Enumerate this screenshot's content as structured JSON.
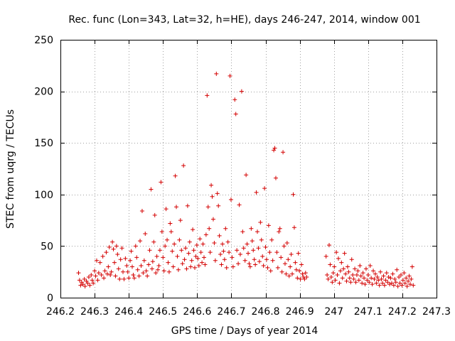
{
  "colors": {
    "series": "#d40000",
    "axis": "#000000",
    "grid": "#a0a0a0",
    "background": "#ffffff"
  },
  "chart_data": {
    "type": "scatter",
    "marker": "plus",
    "title": "Rec. func (Lon=343, Lat=32, h=HE), days 246-247, 2014, window 001",
    "xlabel": "GPS time / Days of year 2014",
    "ylabel": "STEC from uqrg / TECUs",
    "xlim": [
      246.2,
      247.3
    ],
    "ylim": [
      0,
      250
    ],
    "xticks": [
      246.2,
      246.3,
      246.4,
      246.5,
      246.6,
      246.7,
      246.8,
      246.9,
      247.0,
      247.1,
      247.2,
      247.3
    ],
    "xtick_labels": [
      "246.2",
      "246.3",
      "246.4",
      "246.5",
      "246.6",
      "246.7",
      "246.8",
      "246.9",
      "247",
      "247.1",
      "247.2",
      "247.3"
    ],
    "yticks": [
      0,
      50,
      100,
      150,
      200,
      250
    ],
    "ytick_labels": [
      "0",
      "50",
      "100",
      "150",
      "200",
      "250"
    ],
    "grid": true,
    "points": [
      [
        246.253,
        24
      ],
      [
        246.256,
        17
      ],
      [
        246.259,
        12
      ],
      [
        246.262,
        15
      ],
      [
        246.266,
        13
      ],
      [
        246.27,
        18
      ],
      [
        246.272,
        11
      ],
      [
        246.276,
        16
      ],
      [
        246.28,
        14
      ],
      [
        246.283,
        20
      ],
      [
        246.286,
        12
      ],
      [
        246.29,
        22
      ],
      [
        246.293,
        17
      ],
      [
        246.296,
        14
      ],
      [
        246.3,
        26
      ],
      [
        246.303,
        21
      ],
      [
        246.306,
        36
      ],
      [
        246.309,
        17
      ],
      [
        246.312,
        24
      ],
      [
        246.316,
        34
      ],
      [
        246.32,
        22
      ],
      [
        246.324,
        40
      ],
      [
        246.327,
        19
      ],
      [
        246.33,
        26
      ],
      [
        246.334,
        44
      ],
      [
        246.337,
        23
      ],
      [
        246.34,
        30
      ],
      [
        246.343,
        49
      ],
      [
        246.346,
        22
      ],
      [
        246.349,
        25
      ],
      [
        246.352,
        54
      ],
      [
        246.355,
        47
      ],
      [
        246.358,
        34
      ],
      [
        246.361,
        21
      ],
      [
        246.364,
        50
      ],
      [
        246.367,
        42
      ],
      [
        246.37,
        28
      ],
      [
        246.373,
        18
      ],
      [
        246.376,
        37
      ],
      [
        246.38,
        48
      ],
      [
        246.383,
        25
      ],
      [
        246.386,
        18
      ],
      [
        246.39,
        38
      ],
      [
        246.394,
        31
      ],
      [
        246.397,
        25
      ],
      [
        246.4,
        19
      ],
      [
        246.404,
        36
      ],
      [
        246.407,
        45
      ],
      [
        246.41,
        30
      ],
      [
        246.413,
        22
      ],
      [
        246.416,
        19
      ],
      [
        246.42,
        50
      ],
      [
        246.423,
        39
      ],
      [
        246.426,
        27
      ],
      [
        246.43,
        21
      ],
      [
        246.433,
        55
      ],
      [
        246.436,
        31
      ],
      [
        246.439,
        84
      ],
      [
        246.442,
        24
      ],
      [
        246.445,
        36
      ],
      [
        246.448,
        62
      ],
      [
        246.451,
        26
      ],
      [
        246.454,
        21
      ],
      [
        246.458,
        32
      ],
      [
        246.461,
        46
      ],
      [
        246.465,
        105
      ],
      [
        246.468,
        28
      ],
      [
        246.47,
        35
      ],
      [
        246.473,
        54
      ],
      [
        246.476,
        80
      ],
      [
        246.479,
        24
      ],
      [
        246.482,
        40
      ],
      [
        246.485,
        27
      ],
      [
        246.488,
        31
      ],
      [
        246.491,
        46
      ],
      [
        246.494,
        112
      ],
      [
        246.497,
        64
      ],
      [
        246.5,
        39
      ],
      [
        246.503,
        26
      ],
      [
        246.506,
        50
      ],
      [
        246.509,
        86
      ],
      [
        246.512,
        56
      ],
      [
        246.515,
        34
      ],
      [
        246.518,
        25
      ],
      [
        246.521,
        72
      ],
      [
        246.524,
        64
      ],
      [
        246.527,
        45
      ],
      [
        246.53,
        30
      ],
      [
        246.533,
        52
      ],
      [
        246.536,
        118
      ],
      [
        246.539,
        88
      ],
      [
        246.542,
        40
      ],
      [
        246.545,
        27
      ],
      [
        246.548,
        56
      ],
      [
        246.551,
        75
      ],
      [
        246.554,
        46
      ],
      [
        246.557,
        33
      ],
      [
        246.56,
        128
      ],
      [
        246.563,
        37
      ],
      [
        246.566,
        48
      ],
      [
        246.569,
        28
      ],
      [
        246.572,
        89
      ],
      [
        246.575,
        43
      ],
      [
        246.578,
        54
      ],
      [
        246.581,
        30
      ],
      [
        246.584,
        36
      ],
      [
        246.587,
        66
      ],
      [
        246.59,
        46
      ],
      [
        246.593,
        29
      ],
      [
        246.596,
        40
      ],
      [
        246.599,
        51
      ],
      [
        246.602,
        38
      ],
      [
        246.605,
        31
      ],
      [
        246.608,
        57
      ],
      [
        246.611,
        44
      ],
      [
        246.614,
        34
      ],
      [
        246.617,
        52
      ],
      [
        246.62,
        39
      ],
      [
        246.623,
        32
      ],
      [
        246.626,
        61
      ],
      [
        246.629,
        196
      ],
      [
        246.632,
        88
      ],
      [
        246.635,
        67
      ],
      [
        246.638,
        44
      ],
      [
        246.641,
        109
      ],
      [
        246.644,
        98
      ],
      [
        246.647,
        76
      ],
      [
        246.65,
        53
      ],
      [
        246.653,
        36
      ],
      [
        246.656,
        217
      ],
      [
        246.659,
        101
      ],
      [
        246.662,
        89
      ],
      [
        246.665,
        60
      ],
      [
        246.668,
        42
      ],
      [
        246.671,
        32
      ],
      [
        246.674,
        52
      ],
      [
        246.677,
        45
      ],
      [
        246.68,
        37
      ],
      [
        246.683,
        67
      ],
      [
        246.686,
        29
      ],
      [
        246.69,
        54
      ],
      [
        246.693,
        44
      ],
      [
        246.696,
        215
      ],
      [
        246.699,
        95
      ],
      [
        246.702,
        39
      ],
      [
        246.705,
        30
      ],
      [
        246.71,
        192
      ],
      [
        246.713,
        178
      ],
      [
        246.716,
        46
      ],
      [
        246.72,
        33
      ],
      [
        246.723,
        90
      ],
      [
        246.726,
        42
      ],
      [
        246.73,
        200
      ],
      [
        246.733,
        64
      ],
      [
        246.736,
        48
      ],
      [
        246.74,
        36
      ],
      [
        246.743,
        119
      ],
      [
        246.746,
        52
      ],
      [
        246.749,
        43
      ],
      [
        246.752,
        33
      ],
      [
        246.755,
        30
      ],
      [
        246.758,
        67
      ],
      [
        246.761,
        55
      ],
      [
        246.764,
        46
      ],
      [
        246.767,
        37
      ],
      [
        246.77,
        32
      ],
      [
        246.773,
        102
      ],
      [
        246.776,
        64
      ],
      [
        246.779,
        48
      ],
      [
        246.782,
        35
      ],
      [
        246.785,
        73
      ],
      [
        246.788,
        56
      ],
      [
        246.791,
        40
      ],
      [
        246.794,
        31
      ],
      [
        246.797,
        106
      ],
      [
        246.8,
        49
      ],
      [
        246.803,
        37
      ],
      [
        246.806,
        29
      ],
      [
        246.809,
        70
      ],
      [
        246.812,
        44
      ],
      [
        246.815,
        26
      ],
      [
        246.818,
        56
      ],
      [
        246.821,
        36
      ],
      [
        246.824,
        143
      ],
      [
        246.827,
        145
      ],
      [
        246.83,
        116
      ],
      [
        246.833,
        44
      ],
      [
        246.836,
        29
      ],
      [
        246.839,
        64
      ],
      [
        246.842,
        67
      ],
      [
        246.845,
        39
      ],
      [
        246.848,
        25
      ],
      [
        246.851,
        141
      ],
      [
        246.854,
        50
      ],
      [
        246.857,
        33
      ],
      [
        246.86,
        23
      ],
      [
        246.863,
        53
      ],
      [
        246.866,
        37
      ],
      [
        246.869,
        21
      ],
      [
        246.872,
        30
      ],
      [
        246.875,
        42
      ],
      [
        246.878,
        23
      ],
      [
        246.881,
        100
      ],
      [
        246.884,
        68
      ],
      [
        246.887,
        34
      ],
      [
        246.89,
        27
      ],
      [
        246.893,
        19
      ],
      [
        246.896,
        43
      ],
      [
        246.899,
        26
      ],
      [
        246.902,
        18
      ],
      [
        246.905,
        32
      ],
      [
        246.908,
        23
      ],
      [
        246.911,
        20
      ],
      [
        246.914,
        18
      ],
      [
        246.917,
        24
      ],
      [
        246.92,
        20
      ],
      [
        246.977,
        40
      ],
      [
        246.98,
        22
      ],
      [
        246.983,
        18
      ],
      [
        246.986,
        51
      ],
      [
        246.989,
        32
      ],
      [
        246.992,
        20
      ],
      [
        246.995,
        15
      ],
      [
        246.998,
        24
      ],
      [
        247.001,
        30
      ],
      [
        247.004,
        17
      ],
      [
        247.007,
        44
      ],
      [
        247.01,
        22
      ],
      [
        247.013,
        38
      ],
      [
        247.016,
        14
      ],
      [
        247.019,
        26
      ],
      [
        247.022,
        34
      ],
      [
        247.025,
        19
      ],
      [
        247.028,
        28
      ],
      [
        247.031,
        43
      ],
      [
        247.034,
        23
      ],
      [
        247.037,
        16
      ],
      [
        247.04,
        30
      ],
      [
        247.043,
        25
      ],
      [
        247.046,
        19
      ],
      [
        247.049,
        15
      ],
      [
        247.052,
        37
      ],
      [
        247.055,
        22
      ],
      [
        247.058,
        18
      ],
      [
        247.061,
        28
      ],
      [
        247.064,
        15
      ],
      [
        247.067,
        22
      ],
      [
        247.07,
        26
      ],
      [
        247.073,
        17
      ],
      [
        247.076,
        31
      ],
      [
        247.079,
        21
      ],
      [
        247.082,
        14
      ],
      [
        247.085,
        24
      ],
      [
        247.088,
        19
      ],
      [
        247.091,
        13
      ],
      [
        247.094,
        28
      ],
      [
        247.097,
        17
      ],
      [
        247.1,
        22
      ],
      [
        247.103,
        15
      ],
      [
        247.106,
        31
      ],
      [
        247.109,
        19
      ],
      [
        247.112,
        13
      ],
      [
        247.115,
        26
      ],
      [
        247.118,
        18
      ],
      [
        247.121,
        23
      ],
      [
        247.124,
        14
      ],
      [
        247.127,
        20
      ],
      [
        247.13,
        17
      ],
      [
        247.133,
        12
      ],
      [
        247.136,
        25
      ],
      [
        247.139,
        18
      ],
      [
        247.142,
        14
      ],
      [
        247.145,
        21
      ],
      [
        247.148,
        12
      ],
      [
        247.151,
        17
      ],
      [
        247.154,
        24
      ],
      [
        247.157,
        15
      ],
      [
        247.16,
        20
      ],
      [
        247.163,
        13
      ],
      [
        247.166,
        19
      ],
      [
        247.169,
        14
      ],
      [
        247.172,
        23
      ],
      [
        247.175,
        12
      ],
      [
        247.178,
        18
      ],
      [
        247.181,
        15
      ],
      [
        247.184,
        27
      ],
      [
        247.187,
        11
      ],
      [
        247.19,
        20
      ],
      [
        247.193,
        14
      ],
      [
        247.196,
        22
      ],
      [
        247.199,
        12
      ],
      [
        247.202,
        17
      ],
      [
        247.205,
        24
      ],
      [
        247.208,
        14
      ],
      [
        247.211,
        19
      ],
      [
        247.214,
        11
      ],
      [
        247.217,
        16
      ],
      [
        247.22,
        21
      ],
      [
        247.223,
        13
      ],
      [
        247.226,
        18
      ],
      [
        247.229,
        30
      ],
      [
        247.232,
        12
      ]
    ]
  }
}
